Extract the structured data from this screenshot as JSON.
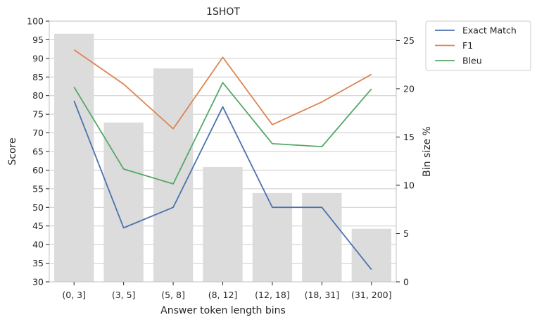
{
  "chart_data": {
    "type": "bar+line",
    "title": "1SHOT",
    "xlabel": "Answer token length bins",
    "ylabel_left": "Score",
    "ylabel_right": "Bin size %",
    "categories": [
      "(0, 3]",
      "(3, 5]",
      "(5, 8]",
      "(8, 12]",
      "(12, 18]",
      "(18, 31]",
      "(31, 200]"
    ],
    "ylim_left": [
      30,
      100
    ],
    "yticks_left": [
      30,
      35,
      40,
      45,
      50,
      55,
      60,
      65,
      70,
      75,
      80,
      85,
      90,
      95,
      100
    ],
    "ylim_right": [
      0,
      27
    ],
    "yticks_right": [
      0,
      5,
      10,
      15,
      20,
      25
    ],
    "bars": {
      "name": "Bin size %",
      "color": "#dcdcdc",
      "values": [
        25.7,
        16.5,
        22.1,
        11.9,
        9.2,
        9.2,
        5.5
      ]
    },
    "series": [
      {
        "name": "Exact Match",
        "color": "#4c72b0",
        "values": [
          78.6,
          44.5,
          50.0,
          77.0,
          50.0,
          50.0,
          33.3
        ]
      },
      {
        "name": "F1",
        "color": "#dd8452",
        "values": [
          92.3,
          83.1,
          71.1,
          90.3,
          72.2,
          78.3,
          85.7
        ]
      },
      {
        "name": "Bleu",
        "color": "#55a868",
        "values": [
          82.3,
          60.3,
          56.3,
          83.5,
          67.1,
          66.3,
          81.8
        ]
      }
    ],
    "grid": true,
    "legend_placement": "outside-top-right"
  }
}
